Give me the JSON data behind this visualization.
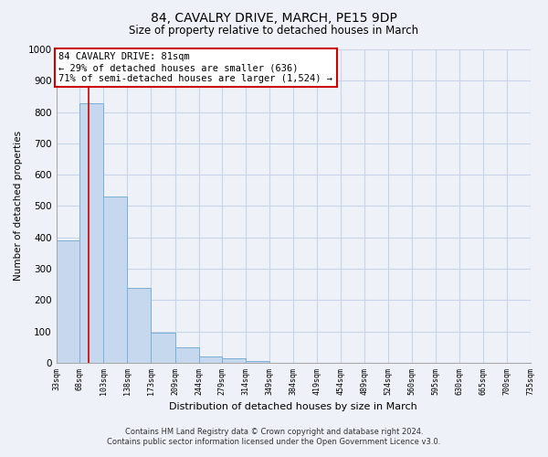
{
  "title": "84, CAVALRY DRIVE, MARCH, PE15 9DP",
  "subtitle": "Size of property relative to detached houses in March",
  "xlabel": "Distribution of detached houses by size in March",
  "ylabel": "Number of detached properties",
  "bar_edges": [
    33,
    68,
    103,
    138,
    173,
    209,
    244,
    279,
    314,
    349,
    384,
    419,
    454,
    489,
    524,
    560,
    595,
    630,
    665,
    700,
    735
  ],
  "bar_heights": [
    390,
    828,
    530,
    240,
    95,
    50,
    20,
    15,
    5,
    0,
    0,
    0,
    0,
    0,
    0,
    0,
    0,
    0,
    0,
    0
  ],
  "bar_color": "#c5d8ee",
  "bar_edge_color": "#7aafd4",
  "reference_line_x": 81,
  "reference_line_color": "#cc0000",
  "annotation_line1": "84 CAVALRY DRIVE: 81sqm",
  "annotation_line2": "← 29% of detached houses are smaller (636)",
  "annotation_line3": "71% of semi-detached houses are larger (1,524) →",
  "annotation_box_color": "#cc0000",
  "ylim": [
    0,
    1000
  ],
  "yticks": [
    0,
    100,
    200,
    300,
    400,
    500,
    600,
    700,
    800,
    900,
    1000
  ],
  "tick_labels": [
    "33sqm",
    "68sqm",
    "103sqm",
    "138sqm",
    "173sqm",
    "209sqm",
    "244sqm",
    "279sqm",
    "314sqm",
    "349sqm",
    "384sqm",
    "419sqm",
    "454sqm",
    "489sqm",
    "524sqm",
    "560sqm",
    "595sqm",
    "630sqm",
    "665sqm",
    "700sqm",
    "735sqm"
  ],
  "footnote1": "Contains HM Land Registry data © Crown copyright and database right 2024.",
  "footnote2": "Contains public sector information licensed under the Open Government Licence v3.0.",
  "background_color": "#eef2f8",
  "grid_color": "#c8d4e8"
}
